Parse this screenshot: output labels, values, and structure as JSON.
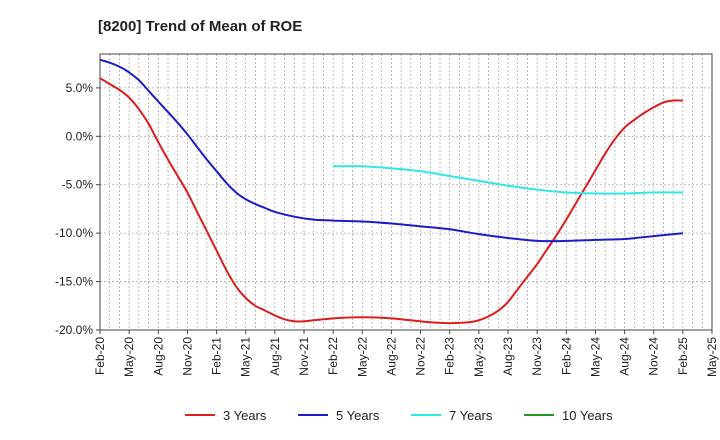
{
  "chart_data": {
    "type": "line",
    "title": "[8200]  Trend of Mean of ROE",
    "x_ticks": [
      "Feb-20",
      "May-20",
      "Aug-20",
      "Nov-20",
      "Feb-21",
      "May-21",
      "Aug-21",
      "Nov-21",
      "Feb-22",
      "May-22",
      "Aug-22",
      "Nov-22",
      "Feb-23",
      "May-23",
      "Aug-23",
      "Nov-23",
      "Feb-24",
      "May-24",
      "Aug-24",
      "Nov-24",
      "Feb-25",
      "May-25"
    ],
    "y_ticks": [
      "5.0%",
      "0.0%",
      "-5.0%",
      "-10.0%",
      "-15.0%",
      "-20.0%"
    ],
    "y_tick_values": [
      5,
      0,
      -5,
      -10,
      -15,
      -20
    ],
    "ylim": [
      -20,
      8.5
    ],
    "grid": true,
    "legend_position": "bottom",
    "series": [
      {
        "name": "3 Years",
        "color": "#dd1c1c",
        "x": [
          "2020-02",
          "2020-03",
          "2020-04",
          "2020-05",
          "2020-06",
          "2020-07",
          "2020-08",
          "2020-09",
          "2020-10",
          "2020-11",
          "2020-12",
          "2021-01",
          "2021-02",
          "2021-03",
          "2021-04",
          "2021-05",
          "2021-06",
          "2021-07",
          "2021-08",
          "2021-09",
          "2021-10",
          "2021-11",
          "2021-12",
          "2022-02",
          "2022-04",
          "2022-06",
          "2022-08",
          "2022-10",
          "2022-12",
          "2023-02",
          "2023-04",
          "2023-05",
          "2023-06",
          "2023-07",
          "2023-08",
          "2023-09",
          "2023-10",
          "2023-11",
          "2023-12",
          "2024-01",
          "2024-02",
          "2024-03",
          "2024-04",
          "2024-05",
          "2024-06",
          "2024-07",
          "2024-08",
          "2024-09",
          "2024-10",
          "2024-11",
          "2024-12",
          "2025-01",
          "2025-02"
        ],
        "values": [
          6.0,
          5.4,
          4.8,
          4.0,
          2.8,
          1.3,
          -0.6,
          -2.4,
          -4.1,
          -5.8,
          -7.8,
          -9.8,
          -11.8,
          -13.8,
          -15.5,
          -16.7,
          -17.5,
          -18.0,
          -18.5,
          -18.9,
          -19.1,
          -19.1,
          -19.0,
          -18.8,
          -18.7,
          -18.7,
          -18.8,
          -19.0,
          -19.2,
          -19.3,
          -19.2,
          -19.0,
          -18.6,
          -18.0,
          -17.1,
          -15.8,
          -14.5,
          -13.2,
          -11.7,
          -10.2,
          -8.6,
          -6.9,
          -5.2,
          -3.5,
          -1.8,
          -0.3,
          0.9,
          1.7,
          2.4,
          3.0,
          3.5,
          3.7,
          3.7
        ]
      },
      {
        "name": "5 Years",
        "color": "#1c1cc8",
        "x": [
          "2020-02",
          "2020-03",
          "2020-04",
          "2020-05",
          "2020-06",
          "2020-07",
          "2020-08",
          "2020-09",
          "2020-10",
          "2020-11",
          "2020-12",
          "2021-01",
          "2021-02",
          "2021-03",
          "2021-04",
          "2021-05",
          "2021-06",
          "2021-07",
          "2021-08",
          "2021-10",
          "2021-12",
          "2022-02",
          "2022-05",
          "2022-08",
          "2022-11",
          "2023-02",
          "2023-05",
          "2023-08",
          "2023-11",
          "2024-02",
          "2024-05",
          "2024-08",
          "2024-11",
          "2025-02"
        ],
        "values": [
          7.9,
          7.6,
          7.2,
          6.6,
          5.8,
          4.7,
          3.6,
          2.5,
          1.4,
          0.2,
          -1.1,
          -2.4,
          -3.6,
          -4.8,
          -5.8,
          -6.5,
          -7.0,
          -7.4,
          -7.8,
          -8.3,
          -8.6,
          -8.7,
          -8.8,
          -9.0,
          -9.3,
          -9.6,
          -10.1,
          -10.5,
          -10.8,
          -10.8,
          -10.7,
          -10.6,
          -10.3,
          -10.0
        ]
      },
      {
        "name": "7 Years",
        "color": "#2ee8e8",
        "x": [
          "2022-02",
          "2022-05",
          "2022-08",
          "2022-11",
          "2023-02",
          "2023-05",
          "2023-08",
          "2023-11",
          "2024-02",
          "2024-05",
          "2024-08",
          "2024-11",
          "2025-02"
        ],
        "values": [
          -3.1,
          -3.1,
          -3.3,
          -3.6,
          -4.1,
          -4.6,
          -5.1,
          -5.5,
          -5.8,
          -5.9,
          -5.9,
          -5.8,
          -5.8
        ]
      },
      {
        "name": "10 Years",
        "color": "#229922",
        "x": [],
        "values": []
      }
    ]
  }
}
